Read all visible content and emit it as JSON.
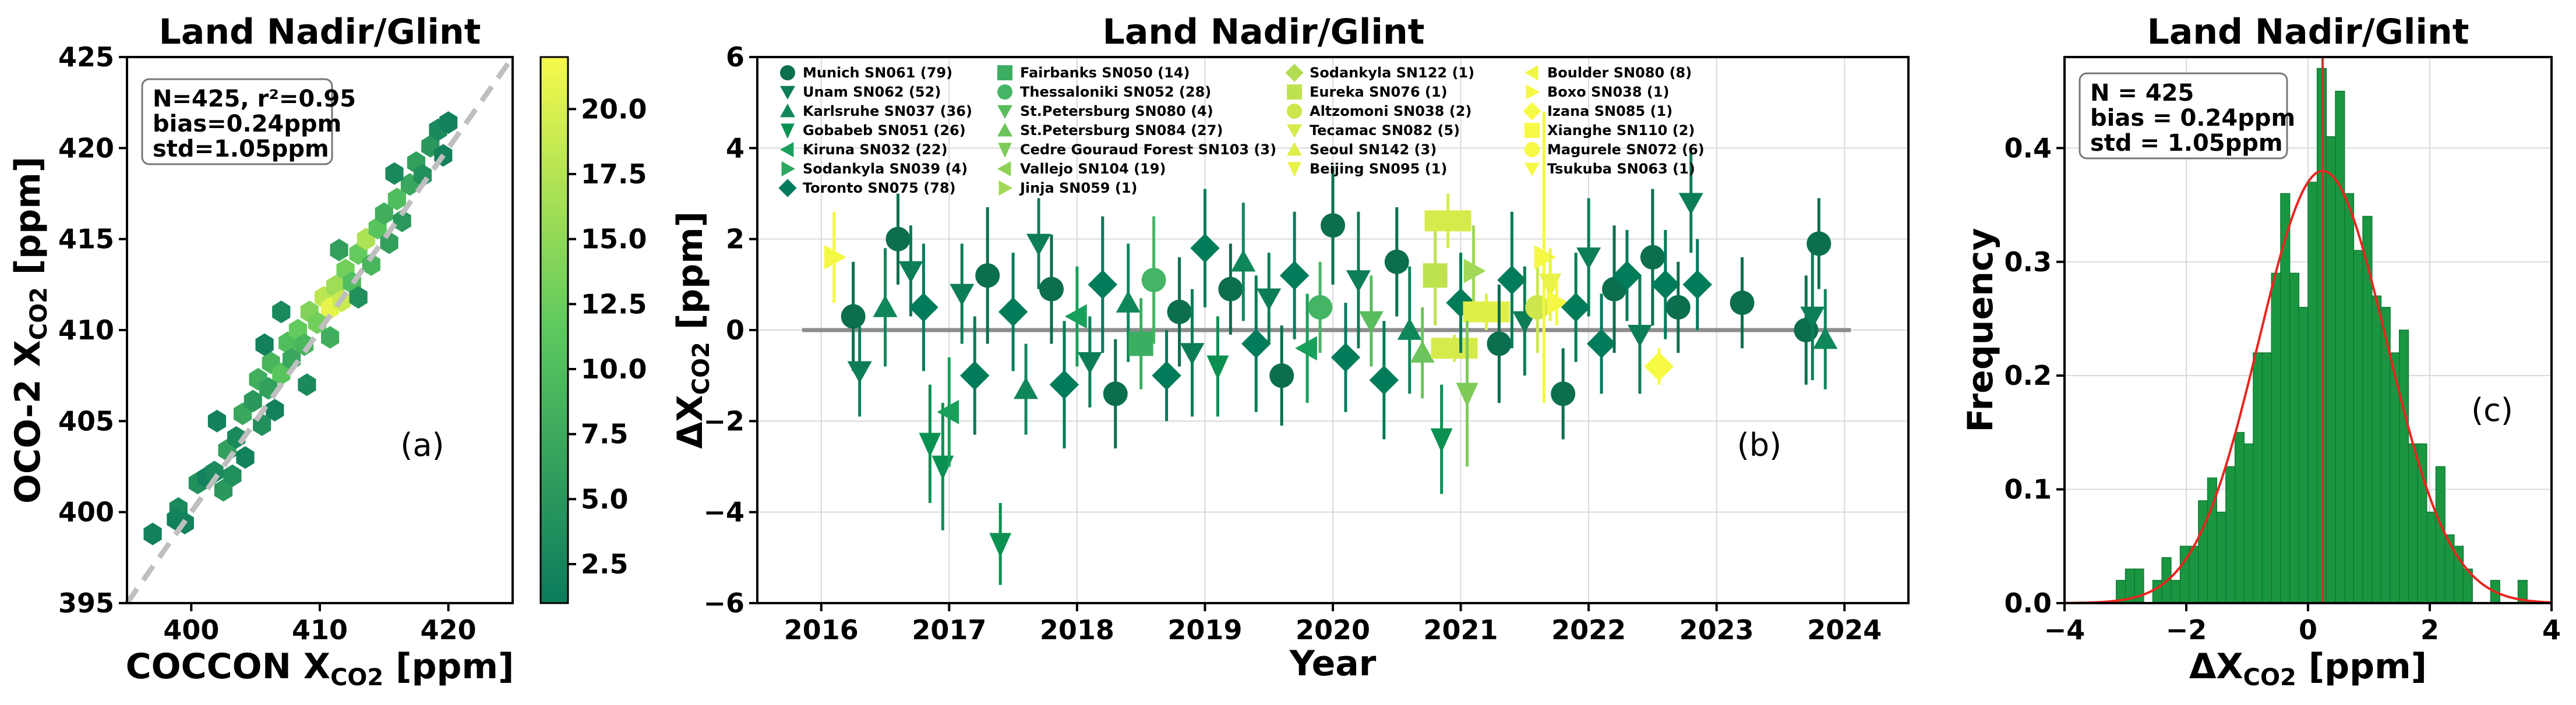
{
  "colors": {
    "axis": "#000000",
    "grid": "#d9d9d9",
    "one_to_one": "#bfbfbf",
    "zero_line": "#8c8c8c",
    "hist_bar": "#1a9641",
    "hist_edge": "#0f7a33",
    "gauss": "#e8251f",
    "vline": "#c0392b",
    "cmap_low": "#0b7a5b",
    "cmap_mid": "#5cc85e",
    "cmap_high": "#f6f94a"
  },
  "chart_data": [
    {
      "type": "hexbin",
      "title": "Land Nadir/Glint",
      "xlabel": "COCCON X",
      "xlabel_sub": "CO2",
      "xlabel_unit": " [ppm]",
      "ylabel": "OCO-2 X",
      "ylabel_sub": "CO2",
      "ylabel_unit": " [ppm]",
      "xlim": [
        395,
        425
      ],
      "ylim": [
        395,
        425
      ],
      "xticks": [
        400,
        410,
        420
      ],
      "yticks": [
        395,
        400,
        405,
        410,
        415,
        420,
        425
      ],
      "stats_lines": [
        "N=425, r²=0.95",
        "bias=0.24ppm",
        "std=1.05ppm"
      ],
      "panel_label": "(a)",
      "colorbar_ticks": [
        "2.5",
        "5.0",
        "7.5",
        "10.0",
        "12.5",
        "15.0",
        "17.5",
        "20.0"
      ],
      "colorbar_range": [
        1,
        22
      ],
      "hexes": [
        [
          397,
          398.8,
          2
        ],
        [
          399,
          400.2,
          3
        ],
        [
          399.5,
          399.4,
          2
        ],
        [
          400.5,
          401.6,
          4
        ],
        [
          401.2,
          401.9,
          2
        ],
        [
          401.8,
          402.2,
          3
        ],
        [
          402.5,
          401.2,
          5
        ],
        [
          403.2,
          402.0,
          4
        ],
        [
          402.8,
          403.4,
          6
        ],
        [
          403.5,
          404.1,
          3
        ],
        [
          404.2,
          403.0,
          2
        ],
        [
          404.0,
          405.4,
          7
        ],
        [
          404.8,
          406.1,
          5
        ],
        [
          405.5,
          404.8,
          4
        ],
        [
          405.2,
          407.3,
          8
        ],
        [
          406.0,
          406.8,
          6
        ],
        [
          406.5,
          405.6,
          2
        ],
        [
          406.2,
          408.2,
          9
        ],
        [
          407.0,
          407.6,
          11
        ],
        [
          407.5,
          409.3,
          10
        ],
        [
          407.8,
          408.4,
          7
        ],
        [
          408.3,
          410.0,
          12
        ],
        [
          408.8,
          409.2,
          9
        ],
        [
          409.2,
          411.0,
          14
        ],
        [
          409.8,
          410.4,
          13
        ],
        [
          410.3,
          411.8,
          18
        ],
        [
          410.8,
          411.2,
          21
        ],
        [
          411.2,
          412.4,
          16
        ],
        [
          411.7,
          411.6,
          19
        ],
        [
          410.8,
          409.6,
          8
        ],
        [
          412.0,
          413.3,
          13
        ],
        [
          412.5,
          412.6,
          10
        ],
        [
          413.0,
          414.2,
          12
        ],
        [
          413.6,
          415.0,
          17
        ],
        [
          414.0,
          413.6,
          9
        ],
        [
          414.5,
          415.6,
          11
        ],
        [
          415.0,
          416.4,
          8
        ],
        [
          415.4,
          414.8,
          6
        ],
        [
          416.0,
          417.2,
          10
        ],
        [
          416.4,
          416.0,
          5
        ],
        [
          417.0,
          418.0,
          7
        ],
        [
          417.5,
          419.2,
          6
        ],
        [
          418.0,
          418.5,
          4
        ],
        [
          418.6,
          420.1,
          5
        ],
        [
          419.2,
          421.0,
          3
        ],
        [
          419.6,
          419.6,
          2
        ],
        [
          420.0,
          421.4,
          2
        ],
        [
          409.0,
          407.0,
          3
        ],
        [
          405.7,
          409.2,
          2
        ],
        [
          402.0,
          405.0,
          2
        ],
        [
          398.8,
          399.6,
          2
        ],
        [
          413.0,
          411.8,
          4
        ],
        [
          415.8,
          418.6,
          3
        ],
        [
          411.5,
          414.4,
          6
        ],
        [
          407.0,
          411.0,
          3
        ]
      ]
    },
    {
      "type": "scatter-errorbar",
      "title": "Land Nadir/Glint",
      "xlabel": "Year",
      "ylabel": "ΔX",
      "ylabel_sub": "CO2",
      "ylabel_unit": " [ppm]",
      "xlim": [
        2015.5,
        2024.5
      ],
      "ylim": [
        -6,
        6
      ],
      "xticks": [
        2016,
        2017,
        2018,
        2019,
        2020,
        2021,
        2022,
        2023,
        2024
      ],
      "yticks": [
        -6,
        -4,
        -2,
        0,
        2,
        4,
        6
      ],
      "panel_label": "(b)",
      "legend_columns": [
        [
          "Munich SN061 (79)",
          "Unam SN062 (52)",
          "Karlsruhe SN037 (36)",
          "Gobabeb SN051 (26)",
          "Kiruna SN032 (22)",
          "Sodankyla SN039 (4)",
          "Toronto SN075 (78)"
        ],
        [
          "Fairbanks SN050 (14)",
          "Thessaloniki SN052 (28)",
          "St.Petersburg SN080 (4)",
          "St.Petersburg SN084 (27)",
          "Cedre Gouraud Forest SN103 (3)",
          "Vallejo SN104 (19)",
          "Jinja SN059 (1)"
        ],
        [
          "Sodankyla SN122 (1)",
          "Eureka SN076 (1)",
          "Altzomoni SN038 (2)",
          "Tecamac SN082 (5)",
          "Seoul SN142 (3)",
          "Beijing SN095 (1)"
        ],
        [
          "Boulder SN080 (8)",
          "Boxo SN038 (1)",
          "Izana SN085 (1)",
          "Xianghe SN110 (2)",
          "Magurele SN072 (6)",
          "Tsukuba SN063 (1)"
        ]
      ],
      "points": [
        [
          2016.25,
          0.3,
          1.2,
          0
        ],
        [
          2016.3,
          -0.9,
          1.0,
          1
        ],
        [
          2016.5,
          0.5,
          1.3,
          2
        ],
        [
          2016.6,
          2.0,
          1.0,
          0
        ],
        [
          2016.7,
          1.3,
          1.0,
          1
        ],
        [
          2016.8,
          0.5,
          1.4,
          6
        ],
        [
          2016.85,
          -2.5,
          1.3,
          3
        ],
        [
          2016.95,
          -3.0,
          1.4,
          3
        ],
        [
          2017.0,
          -1.8,
          1.2,
          4
        ],
        [
          2017.1,
          0.8,
          1.1,
          1
        ],
        [
          2017.2,
          -1.0,
          1.3,
          6
        ],
        [
          2017.3,
          1.2,
          1.5,
          0
        ],
        [
          2017.4,
          -4.7,
          0.9,
          3
        ],
        [
          2017.5,
          0.4,
          1.3,
          6
        ],
        [
          2017.6,
          -1.3,
          1.0,
          2
        ],
        [
          2017.7,
          1.9,
          1.0,
          1
        ],
        [
          2017.8,
          0.9,
          1.2,
          0
        ],
        [
          2017.9,
          -1.2,
          1.4,
          6
        ],
        [
          2018.0,
          0.3,
          1.1,
          4
        ],
        [
          2018.1,
          -0.7,
          1.0,
          1
        ],
        [
          2018.2,
          1.0,
          1.5,
          6
        ],
        [
          2018.3,
          -1.4,
          1.2,
          0
        ],
        [
          2018.4,
          0.6,
          1.3,
          2
        ],
        [
          2018.5,
          -0.3,
          1.0,
          7
        ],
        [
          2018.6,
          1.1,
          1.4,
          8
        ],
        [
          2018.7,
          -1.0,
          1.0,
          6
        ],
        [
          2018.8,
          0.4,
          1.2,
          0
        ],
        [
          2018.9,
          -0.5,
          1.4,
          1
        ],
        [
          2019.0,
          1.8,
          1.3,
          6
        ],
        [
          2019.1,
          -0.8,
          1.1,
          3
        ],
        [
          2019.2,
          0.9,
          1.0,
          0
        ],
        [
          2019.3,
          1.5,
          1.3,
          2
        ],
        [
          2019.4,
          -0.3,
          1.5,
          6
        ],
        [
          2019.5,
          0.7,
          1.0,
          1
        ],
        [
          2019.6,
          -1.0,
          1.1,
          0
        ],
        [
          2019.7,
          1.2,
          1.4,
          6
        ],
        [
          2019.8,
          -0.4,
          1.2,
          4
        ],
        [
          2019.9,
          0.5,
          1.0,
          8
        ],
        [
          2020.0,
          2.3,
          1.3,
          0
        ],
        [
          2020.1,
          -0.6,
          1.2,
          6
        ],
        [
          2020.2,
          1.1,
          1.5,
          1
        ],
        [
          2020.3,
          0.2,
          1.0,
          9
        ],
        [
          2020.4,
          -1.1,
          1.3,
          6
        ],
        [
          2020.5,
          1.5,
          1.2,
          0
        ],
        [
          2020.6,
          0.0,
          1.4,
          2
        ],
        [
          2020.7,
          -0.5,
          1.0,
          10
        ],
        [
          2020.8,
          1.2,
          1.1,
          15
        ],
        [
          2020.85,
          -2.4,
          1.2,
          3
        ],
        [
          2020.9,
          2.4,
          0.6,
          17
        ],
        [
          2020.95,
          -0.4,
          0.3,
          17
        ],
        [
          2021.0,
          0.6,
          1.1,
          6
        ],
        [
          2021.1,
          1.3,
          1.0,
          13
        ],
        [
          2021.2,
          0.4,
          0.4,
          18
        ],
        [
          2021.3,
          -0.3,
          1.3,
          0
        ],
        [
          2021.4,
          1.1,
          1.5,
          6
        ],
        [
          2021.5,
          0.2,
          1.2,
          1
        ],
        [
          2021.6,
          0.5,
          1.0,
          16
        ],
        [
          2021.65,
          1.6,
          3.2,
          21
        ],
        [
          2021.7,
          1.0,
          0.8,
          19
        ],
        [
          2021.75,
          0.6,
          0.5,
          21
        ],
        [
          2021.8,
          -1.4,
          1.0,
          0
        ],
        [
          2021.9,
          0.5,
          1.2,
          6
        ],
        [
          2022.0,
          1.6,
          1.3,
          1
        ],
        [
          2022.1,
          -0.3,
          1.1,
          6
        ],
        [
          2022.2,
          0.9,
          1.4,
          0
        ],
        [
          2022.3,
          1.2,
          1.0,
          6
        ],
        [
          2022.4,
          -0.1,
          1.3,
          1
        ],
        [
          2022.5,
          1.6,
          1.5,
          0
        ],
        [
          2022.55,
          -0.8,
          0.4,
          22
        ],
        [
          2022.6,
          1.0,
          1.2,
          6
        ],
        [
          2022.7,
          0.5,
          1.0,
          0
        ],
        [
          2022.8,
          2.8,
          1.1,
          1
        ],
        [
          2022.85,
          1.0,
          1.0,
          6
        ],
        [
          2023.2,
          0.6,
          1.0,
          0
        ],
        [
          2023.7,
          0.0,
          1.2,
          0
        ],
        [
          2023.75,
          0.3,
          1.4,
          1
        ],
        [
          2023.8,
          1.9,
          1.0,
          0
        ],
        [
          2023.85,
          -0.2,
          1.1,
          2
        ],
        [
          2016.1,
          1.6,
          1.0,
          21
        ],
        [
          2021.05,
          -1.4,
          1.6,
          11
        ]
      ]
    },
    {
      "type": "histogram",
      "title": "Land Nadir/Glint",
      "xlabel": "ΔX",
      "xlabel_sub": "CO2",
      "xlabel_unit": " [ppm]",
      "ylabel": "Frequency",
      "xlim": [
        -4,
        4
      ],
      "ylim": [
        0,
        0.48
      ],
      "xticks": [
        "−4",
        "−2",
        "0",
        "2",
        "4"
      ],
      "xtick_values": [
        -4,
        -2,
        0,
        2,
        4
      ],
      "yticks": [
        "0.0",
        "0.1",
        "0.2",
        "0.3",
        "0.4"
      ],
      "ytick_values": [
        0,
        0.1,
        0.2,
        0.3,
        0.4
      ],
      "stats_lines": [
        "N = 425",
        "bias = 0.24ppm",
        "std = 1.05ppm"
      ],
      "panel_label": "(c)",
      "bin_width": 0.15,
      "bins_start": -3.15,
      "values": [
        0.02,
        0.03,
        0.03,
        0.0,
        0.02,
        0.04,
        0.02,
        0.05,
        0.05,
        0.09,
        0.11,
        0.08,
        0.12,
        0.15,
        0.14,
        0.22,
        0.22,
        0.29,
        0.36,
        0.29,
        0.26,
        0.37,
        0.47,
        0.41,
        0.45,
        0.36,
        0.31,
        0.34,
        0.27,
        0.26,
        0.22,
        0.24,
        0.14,
        0.14,
        0.08,
        0.12,
        0.06,
        0.05,
        0.03,
        0.0,
        0.0,
        0.02,
        0.0,
        0.0,
        0.02
      ],
      "gauss_mu": 0.24,
      "gauss_sigma": 1.05
    }
  ]
}
